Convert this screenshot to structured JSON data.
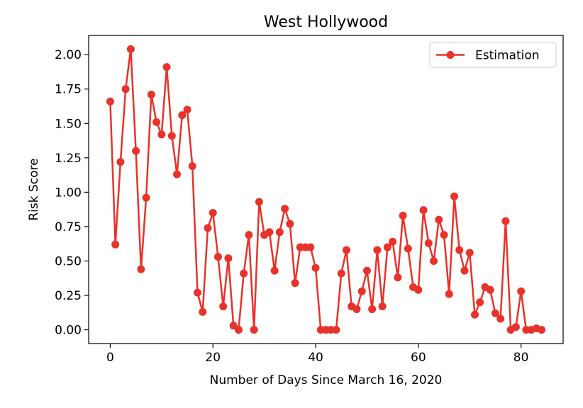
{
  "chart_data": {
    "type": "line",
    "title": "West Hollywood",
    "xlabel": "Number of Days Since March 16, 2020",
    "ylabel": "Risk Score",
    "xlim": [
      -4.2,
      88.2
    ],
    "ylim": [
      -0.1,
      2.14
    ],
    "xticks": [
      0,
      20,
      40,
      60,
      80
    ],
    "yticks": [
      0.0,
      0.25,
      0.5,
      0.75,
      1.0,
      1.25,
      1.5,
      1.75,
      2.0
    ],
    "ytick_labels": [
      "0.00",
      "0.25",
      "0.50",
      "0.75",
      "1.00",
      "1.25",
      "1.50",
      "1.75",
      "2.00"
    ],
    "xtick_labels": [
      "0",
      "20",
      "40",
      "60",
      "80"
    ],
    "grid": false,
    "legend": {
      "position": "top-right",
      "entries": [
        "Estimation"
      ]
    },
    "series": [
      {
        "name": "Estimation",
        "color": "#e8322a",
        "marker": "circle",
        "x": [
          0,
          1,
          2,
          3,
          4,
          5,
          6,
          7,
          8,
          9,
          10,
          11,
          12,
          13,
          14,
          15,
          16,
          17,
          18,
          19,
          20,
          21,
          22,
          23,
          24,
          25,
          26,
          27,
          28,
          29,
          30,
          31,
          32,
          33,
          34,
          35,
          36,
          37,
          38,
          39,
          40,
          41,
          42,
          43,
          44,
          45,
          46,
          47,
          48,
          49,
          50,
          51,
          52,
          53,
          54,
          55,
          56,
          57,
          58,
          59,
          60,
          61,
          62,
          63,
          64,
          65,
          66,
          67,
          68,
          69,
          70,
          71,
          72,
          73,
          74,
          75,
          76,
          77,
          78,
          79,
          80,
          81,
          82,
          83,
          84
        ],
        "y": [
          1.66,
          0.62,
          1.22,
          1.75,
          2.04,
          1.3,
          0.44,
          0.96,
          1.71,
          1.51,
          1.42,
          1.91,
          1.41,
          1.13,
          1.56,
          1.6,
          1.19,
          0.27,
          0.13,
          0.74,
          0.85,
          0.53,
          0.17,
          0.52,
          0.03,
          0.0,
          0.41,
          0.69,
          0.0,
          0.93,
          0.69,
          0.71,
          0.43,
          0.71,
          0.88,
          0.77,
          0.34,
          0.6,
          0.6,
          0.6,
          0.45,
          0.0,
          0.0,
          0.0,
          0.0,
          0.41,
          0.58,
          0.17,
          0.15,
          0.28,
          0.43,
          0.15,
          0.58,
          0.17,
          0.6,
          0.64,
          0.38,
          0.83,
          0.59,
          0.31,
          0.29,
          0.87,
          0.63,
          0.5,
          0.8,
          0.69,
          0.26,
          0.97,
          0.58,
          0.43,
          0.56,
          0.11,
          0.2,
          0.31,
          0.29,
          0.12,
          0.08,
          0.79,
          0.0,
          0.02,
          0.28,
          0.0,
          0.0,
          0.01,
          0.0
        ]
      }
    ]
  }
}
